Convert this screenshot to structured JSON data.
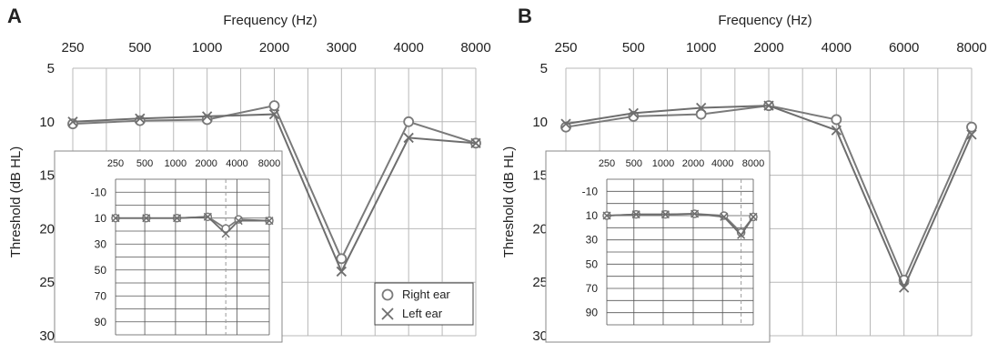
{
  "series_colors": {
    "right_ear": "#7a7a7a",
    "left_ear": "#6e6e6e",
    "grid": "#b8b8b8",
    "frame": "#8a8a8a",
    "dashed": "#9a9a9a"
  },
  "chart_data": [
    {
      "panel_label": "A",
      "type": "line",
      "xlabel": "Frequency (Hz)",
      "ylabel": "Threshold (dB HL)",
      "x_tick_labels": [
        "250",
        "500",
        "1000",
        "2000",
        "3000",
        "4000",
        "8000"
      ],
      "y_tick_labels": [
        "5",
        "10",
        "15",
        "20",
        "25",
        "30"
      ],
      "ylim": [
        30,
        5
      ],
      "y_inverted": true,
      "grid": true,
      "series": [
        {
          "name": "Right ear",
          "marker": "circle",
          "values": [
            10.2,
            9.9,
            9.8,
            8.5,
            22.8,
            10,
            12
          ]
        },
        {
          "name": "Left ear",
          "marker": "cross",
          "values": [
            10,
            9.7,
            9.5,
            9.3,
            24,
            11.5,
            12
          ]
        }
      ],
      "legend": {
        "placement": "bottom-right",
        "entries": [
          "Right ear",
          "Left ear"
        ]
      },
      "inset": {
        "x_tick_labels": [
          "250",
          "500",
          "1000",
          "2000",
          "4000",
          "8000"
        ],
        "y_tick_labels": [
          "-10",
          "10",
          "30",
          "50",
          "70",
          "90"
        ],
        "ylim": [
          -20,
          100
        ],
        "dashed_at": "3000",
        "series": [
          {
            "name": "Right ear",
            "marker": "circle",
            "x": [
              250,
              500,
              1000,
              2000,
              3000,
              4000,
              8000
            ],
            "values": [
              10,
              10,
              10,
              9,
              18,
              11,
              12
            ]
          },
          {
            "name": "Left ear",
            "marker": "cross",
            "x": [
              250,
              500,
              1000,
              2000,
              3000,
              4000,
              8000
            ],
            "values": [
              10,
              10,
              10,
              9,
              22,
              12,
              12
            ]
          }
        ]
      }
    },
    {
      "panel_label": "B",
      "type": "line",
      "xlabel": "Frequency (Hz)",
      "ylabel": "Threshold (dB HL)",
      "x_tick_labels": [
        "250",
        "500",
        "1000",
        "2000",
        "4000",
        "6000",
        "8000"
      ],
      "y_tick_labels": [
        "5",
        "10",
        "15",
        "20",
        "25",
        "30"
      ],
      "ylim": [
        30,
        5
      ],
      "y_inverted": true,
      "grid": true,
      "series": [
        {
          "name": "Right ear",
          "marker": "circle",
          "values": [
            10.5,
            9.5,
            9.3,
            8.5,
            9.8,
            24.8,
            10.5
          ]
        },
        {
          "name": "Left ear",
          "marker": "cross",
          "values": [
            10.2,
            9.2,
            8.7,
            8.5,
            10.8,
            25.5,
            11.2
          ]
        }
      ],
      "inset": {
        "x_tick_labels": [
          "250",
          "500",
          "1000",
          "2000",
          "4000",
          "8000"
        ],
        "y_tick_labels": [
          "-10",
          "10",
          "30",
          "50",
          "70",
          "90"
        ],
        "ylim": [
          -20,
          100
        ],
        "dashed_at": "6000",
        "series": [
          {
            "name": "Right ear",
            "marker": "circle",
            "x": [
              250,
              500,
              1000,
              2000,
              4000,
              6000,
              8000
            ],
            "values": [
              10,
              9,
              9,
              8.5,
              10,
              24,
              11
            ]
          },
          {
            "name": "Left ear",
            "marker": "cross",
            "x": [
              250,
              500,
              1000,
              2000,
              4000,
              6000,
              8000
            ],
            "values": [
              10,
              9,
              9,
              8.5,
              11,
              26,
              11
            ]
          }
        ]
      }
    }
  ]
}
